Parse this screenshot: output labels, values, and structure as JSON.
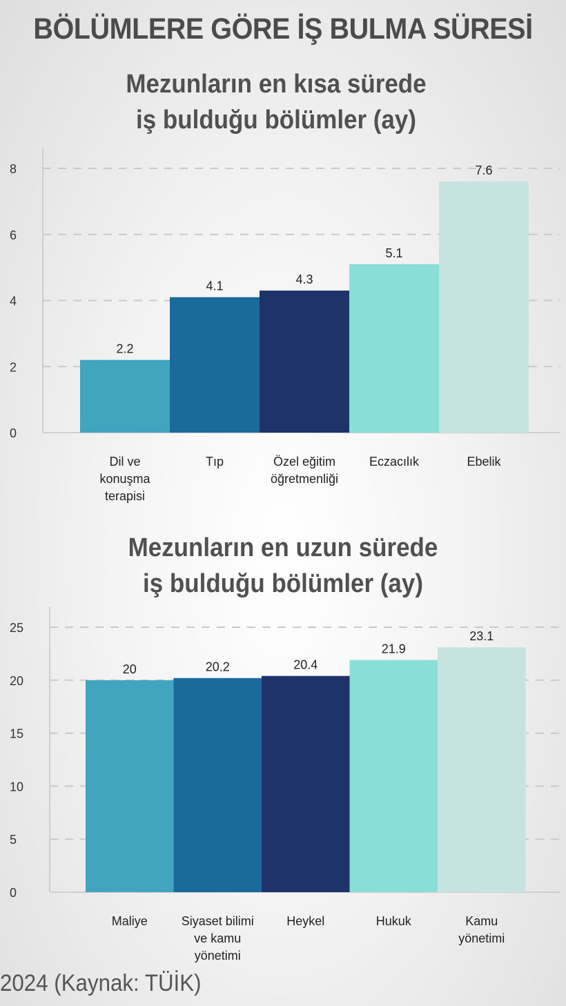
{
  "header": {
    "title": "BÖLÜMLERE GÖRE İŞ BULMA SÜRESİ"
  },
  "charts": [
    {
      "title_lines": [
        "Mezunların en kısa sürede",
        "iş bulduğu bölümler (ay)"
      ]
    },
    {
      "title_lines": [
        "Mezunların en uzun sürede",
        "iş bulduğu bölümler (ay)"
      ]
    }
  ],
  "chart_data": [
    {
      "type": "bar",
      "title": "Mezunların en kısa sürede iş bulduğu bölümler (ay)",
      "categories": [
        [
          "Dil ve",
          "konuşma",
          "terapisi"
        ],
        [
          "Tıp"
        ],
        [
          "Özel eğitim",
          "öğretmenliği"
        ],
        [
          "Eczacılık"
        ],
        [
          "Ebelik"
        ]
      ],
      "values": [
        2.2,
        4.1,
        4.3,
        5.1,
        7.6
      ],
      "value_labels": [
        "2.2",
        "4.1",
        "4.3",
        "5.1",
        "7.6"
      ],
      "colors": [
        "#42a5bf",
        "#1b6a9c",
        "#1f336b",
        "#89ded8",
        "#c6e3e0"
      ],
      "yticks": [
        "0",
        "2",
        "4",
        "6",
        "8"
      ],
      "ylim": [
        0,
        8
      ],
      "grid": true
    },
    {
      "type": "bar",
      "title": "Mezunların en uzun sürede iş bulduğu bölümler (ay)",
      "categories": [
        [
          "Maliye"
        ],
        [
          "Siyaset bilimi",
          "ve kamu",
          "yönetimi"
        ],
        [
          "Heykel"
        ],
        [
          "Hukuk"
        ],
        [
          "Kamu",
          "yönetimi"
        ]
      ],
      "values": [
        20,
        20.2,
        20.4,
        21.9,
        23.1
      ],
      "value_labels": [
        "20",
        "20.2",
        "20.4",
        "21.9",
        "23.1"
      ],
      "colors": [
        "#42a5bf",
        "#1b6a9c",
        "#1f336b",
        "#89ded8",
        "#c6e3e0"
      ],
      "yticks": [
        "0",
        "5",
        "10",
        "15",
        "20",
        "25"
      ],
      "ylim": [
        0,
        25
      ],
      "grid": true
    }
  ],
  "footer": {
    "source": "2024 (Kaynak: TÜİK)"
  }
}
